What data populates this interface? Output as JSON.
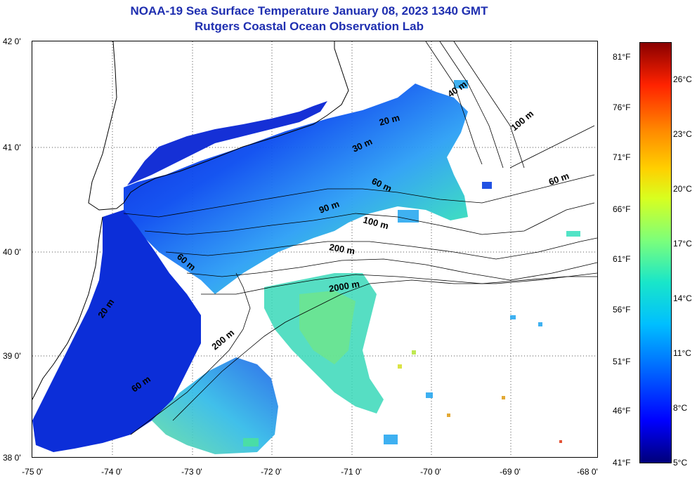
{
  "title": "NOAA-19 Sea Surface Temperature January 08, 2023 1340 GMT",
  "subtitle": "Rutgers Coastal Ocean Observation Lab",
  "latitude_ticks": [
    "42 0'",
    "41 0'",
    "40 0'",
    "39 0'",
    "38 0'"
  ],
  "longitude_ticks": [
    "-75 0'",
    "-74 0'",
    "-73 0'",
    "-72 0'",
    "-71 0'",
    "-70 0'",
    "-69 0'",
    "-68 0'"
  ],
  "colorbar": {
    "fahrenheit_labels": [
      "81°F",
      "76°F",
      "71°F",
      "66°F",
      "61°F",
      "56°F",
      "51°F",
      "46°F",
      "41°F"
    ],
    "celsius_labels": [
      "26°C",
      "23°C",
      "20°C",
      "17°C",
      "14°C",
      "11°C",
      "8°C",
      "5°C"
    ],
    "colors": [
      "#00007a",
      "#0000ff",
      "#0066ff",
      "#00bfff",
      "#19e6c9",
      "#7dff7a",
      "#d8ff1f",
      "#ffd000",
      "#ff8a00",
      "#ff2200",
      "#8a0000"
    ]
  },
  "contour_labels": [
    "40 m",
    "100 m",
    "60 m",
    "20 m",
    "60 m",
    "90 m",
    "100 m",
    "200 m",
    "2000 m",
    "60 m",
    "20 m",
    "200 m",
    "60 m",
    "30 m"
  ]
}
